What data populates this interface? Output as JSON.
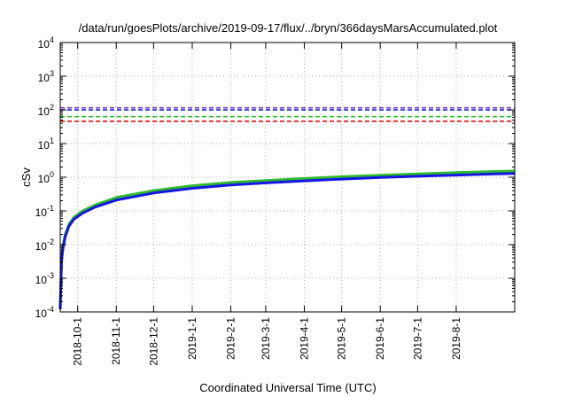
{
  "chart_data": {
    "type": "line",
    "title": "/data/run/goesPlots/archive/2019-09-17/flux/../bryn/366daysMarsAccumulated.plot",
    "xlabel": "Coordinated Universal Time (UTC)",
    "ylabel": "cSv",
    "yscale": "log",
    "ylim": [
      0.0001,
      10000
    ],
    "y_ticks": [
      {
        "value": 0.0001,
        "base": "10",
        "exp": "-4"
      },
      {
        "value": 0.001,
        "base": "10",
        "exp": "-3"
      },
      {
        "value": 0.01,
        "base": "10",
        "exp": "-2"
      },
      {
        "value": 0.1,
        "base": "10",
        "exp": "-1"
      },
      {
        "value": 1,
        "base": "10",
        "exp": "0"
      },
      {
        "value": 10,
        "base": "10",
        "exp": "1"
      },
      {
        "value": 100,
        "base": "10",
        "exp": "2"
      },
      {
        "value": 1000,
        "base": "10",
        "exp": "3"
      },
      {
        "value": 10000,
        "base": "10",
        "exp": "4"
      }
    ],
    "xlim": [
      "2018-09-17",
      "2019-09-17"
    ],
    "x_ticks": [
      "2018-10-1",
      "2018-11-1",
      "2018-12-1",
      "2019-1-1",
      "2019-2-1",
      "2019-3-1",
      "2019-4-1",
      "2019-5-1",
      "2019-6-1",
      "2019-7-1",
      "2019-8-1"
    ],
    "grid": true,
    "reference_lines": [
      {
        "value": 115,
        "color": "#7b2fbe",
        "style": "dashed"
      },
      {
        "value": 100,
        "color": "#1010e0",
        "style": "dashed"
      },
      {
        "value": 63,
        "color": "#22bb22",
        "style": "dashed"
      },
      {
        "value": 46,
        "color": "#dd1111",
        "style": "dashed"
      }
    ],
    "series": [
      {
        "color": "#2dbb2d",
        "x": [
          "2018-09-17",
          "2018-09-18",
          "2018-09-19",
          "2018-09-21",
          "2018-09-24",
          "2018-09-28",
          "2018-10-05",
          "2018-10-15",
          "2018-11-01",
          "2018-12-01",
          "2019-01-01",
          "2019-02-01",
          "2019-03-01",
          "2019-04-01",
          "2019-05-01",
          "2019-06-01",
          "2019-07-01",
          "2019-08-01",
          "2019-09-01",
          "2019-09-17"
        ],
        "values": [
          0.00015,
          0.0035,
          0.008,
          0.02,
          0.04,
          0.065,
          0.1,
          0.15,
          0.25,
          0.4,
          0.56,
          0.7,
          0.8,
          0.92,
          1.04,
          1.15,
          1.26,
          1.37,
          1.48,
          1.53
        ]
      },
      {
        "color": "#1515e6",
        "x": [
          "2018-09-17",
          "2018-09-18",
          "2018-09-19",
          "2018-09-21",
          "2018-09-24",
          "2018-09-28",
          "2018-10-05",
          "2018-10-15",
          "2018-11-01",
          "2018-12-01",
          "2019-01-01",
          "2019-02-01",
          "2019-03-01",
          "2019-04-01",
          "2019-05-01",
          "2019-06-01",
          "2019-07-01",
          "2019-08-01",
          "2019-09-01",
          "2019-09-17"
        ],
        "values": [
          0.00012,
          0.003,
          0.007,
          0.017,
          0.035,
          0.057,
          0.086,
          0.13,
          0.21,
          0.34,
          0.47,
          0.59,
          0.68,
          0.78,
          0.88,
          0.98,
          1.07,
          1.16,
          1.25,
          1.3
        ]
      }
    ],
    "colors": {
      "axis": "#000000",
      "grid": "#b0b0b0"
    }
  }
}
